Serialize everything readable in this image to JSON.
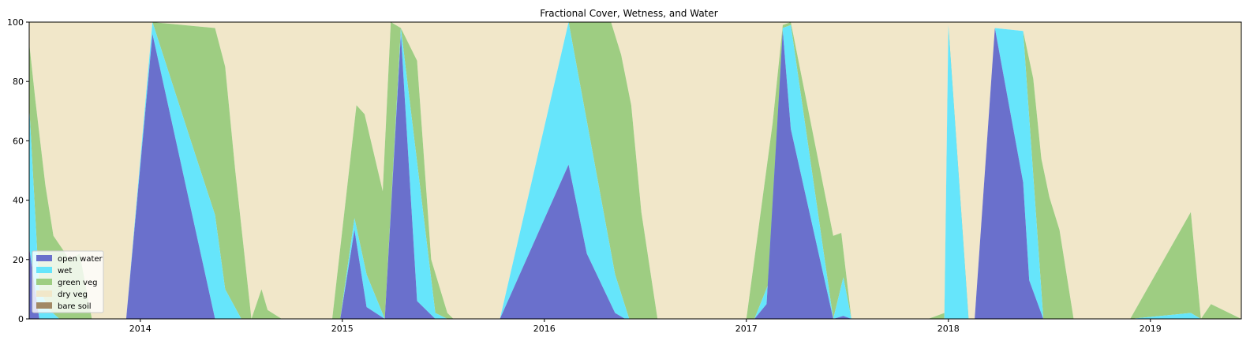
{
  "chart_data": {
    "type": "area",
    "stacked": true,
    "title": "Fractional Cover, Wetness, and Water",
    "xlabel": "",
    "ylabel": "",
    "xlim": [
      2013.45,
      2019.45
    ],
    "ylim": [
      0,
      100
    ],
    "x_ticks": [
      2014,
      2015,
      2016,
      2017,
      2018,
      2019
    ],
    "x_tick_labels": [
      "2014",
      "2015",
      "2016",
      "2017",
      "2018",
      "2019"
    ],
    "y_ticks": [
      0,
      20,
      40,
      60,
      80,
      100
    ],
    "y_tick_labels": [
      "0",
      "20",
      "40",
      "60",
      "80",
      "100"
    ],
    "legend_position": "lower-left",
    "grid": false,
    "series": [
      {
        "name": "open water",
        "color": "#6a70cc",
        "points": [
          [
            2013.45,
            24
          ],
          [
            2013.5,
            0
          ],
          [
            2013.93,
            0
          ],
          [
            2014.06,
            96
          ],
          [
            2014.37,
            0
          ],
          [
            2014.99,
            0
          ],
          [
            2015.06,
            30
          ],
          [
            2015.12,
            4
          ],
          [
            2015.21,
            0
          ],
          [
            2015.29,
            96
          ],
          [
            2015.37,
            6
          ],
          [
            2015.46,
            0
          ],
          [
            2015.78,
            0
          ],
          [
            2016.12,
            52
          ],
          [
            2016.21,
            22
          ],
          [
            2016.35,
            2
          ],
          [
            2016.4,
            0
          ],
          [
            2017.04,
            0
          ],
          [
            2017.1,
            5
          ],
          [
            2017.18,
            97
          ],
          [
            2017.22,
            64
          ],
          [
            2017.43,
            0
          ],
          [
            2017.48,
            1
          ],
          [
            2017.52,
            0
          ],
          [
            2018.13,
            0
          ],
          [
            2018.23,
            98
          ],
          [
            2018.37,
            46
          ],
          [
            2018.4,
            13
          ],
          [
            2018.47,
            0
          ],
          [
            2019.45,
            0
          ]
        ]
      },
      {
        "name": "wet",
        "color": "#66e5fb",
        "points": [
          [
            2013.45,
            72
          ],
          [
            2013.5,
            10
          ],
          [
            2013.55,
            3
          ],
          [
            2013.6,
            0
          ],
          [
            2013.93,
            0
          ],
          [
            2014.06,
            100
          ],
          [
            2014.25,
            60
          ],
          [
            2014.37,
            35
          ],
          [
            2014.42,
            10
          ],
          [
            2014.5,
            0
          ],
          [
            2014.99,
            0
          ],
          [
            2015.06,
            34
          ],
          [
            2015.12,
            15
          ],
          [
            2015.21,
            0
          ],
          [
            2015.29,
            98
          ],
          [
            2015.46,
            2
          ],
          [
            2015.52,
            0
          ],
          [
            2015.78,
            0
          ],
          [
            2016.12,
            100
          ],
          [
            2016.35,
            15
          ],
          [
            2016.42,
            0
          ],
          [
            2017.04,
            0
          ],
          [
            2017.14,
            17
          ],
          [
            2017.18,
            98
          ],
          [
            2017.22,
            99
          ],
          [
            2017.43,
            0
          ],
          [
            2017.48,
            14
          ],
          [
            2017.52,
            0
          ],
          [
            2017.98,
            0
          ],
          [
            2018.0,
            99
          ],
          [
            2018.1,
            0
          ],
          [
            2018.13,
            0
          ],
          [
            2018.23,
            98
          ],
          [
            2018.37,
            97
          ],
          [
            2018.47,
            0
          ],
          [
            2018.9,
            0
          ],
          [
            2019.2,
            2
          ],
          [
            2019.25,
            0
          ],
          [
            2019.45,
            0
          ]
        ]
      },
      {
        "name": "green veg",
        "color": "#9ecd82",
        "points": [
          [
            2013.45,
            93
          ],
          [
            2013.48,
            74
          ],
          [
            2013.53,
            45
          ],
          [
            2013.57,
            28
          ],
          [
            2013.65,
            20
          ],
          [
            2013.7,
            22
          ],
          [
            2013.76,
            0
          ],
          [
            2013.93,
            0
          ],
          [
            2014.06,
            100
          ],
          [
            2014.37,
            98
          ],
          [
            2014.42,
            85
          ],
          [
            2014.47,
            50
          ],
          [
            2014.55,
            0
          ],
          [
            2014.6,
            10
          ],
          [
            2014.63,
            3
          ],
          [
            2014.7,
            0
          ],
          [
            2014.95,
            0
          ],
          [
            2015.07,
            72
          ],
          [
            2015.11,
            69
          ],
          [
            2015.2,
            43
          ],
          [
            2015.24,
            100
          ],
          [
            2015.29,
            98
          ],
          [
            2015.37,
            87
          ],
          [
            2015.44,
            20
          ],
          [
            2015.52,
            2
          ],
          [
            2015.55,
            0
          ],
          [
            2015.78,
            0
          ],
          [
            2016.12,
            100
          ],
          [
            2016.33,
            100
          ],
          [
            2016.38,
            89
          ],
          [
            2016.43,
            72
          ],
          [
            2016.48,
            36
          ],
          [
            2016.56,
            0
          ],
          [
            2016.6,
            0
          ],
          [
            2017.0,
            0
          ],
          [
            2017.13,
            66
          ],
          [
            2017.18,
            99
          ],
          [
            2017.22,
            100
          ],
          [
            2017.43,
            28
          ],
          [
            2017.47,
            29
          ],
          [
            2017.52,
            0
          ],
          [
            2017.9,
            0
          ],
          [
            2017.98,
            2
          ],
          [
            2018.0,
            99
          ],
          [
            2018.06,
            15
          ],
          [
            2018.1,
            0
          ],
          [
            2018.13,
            0
          ],
          [
            2018.23,
            98
          ],
          [
            2018.37,
            97
          ],
          [
            2018.42,
            81
          ],
          [
            2018.46,
            54
          ],
          [
            2018.5,
            41
          ],
          [
            2018.55,
            30
          ],
          [
            2018.62,
            0
          ],
          [
            2018.9,
            0
          ],
          [
            2019.2,
            36
          ],
          [
            2019.25,
            0
          ],
          [
            2019.3,
            5
          ],
          [
            2019.45,
            0
          ]
        ]
      },
      {
        "name": "dry veg",
        "color": "#f1e7c9",
        "points": [
          [
            2013.45,
            100
          ],
          [
            2019.45,
            100
          ]
        ]
      },
      {
        "name": "bare soil",
        "color": "#a28865",
        "points": [
          [
            2013.45,
            100
          ],
          [
            2013.48,
            99.5
          ],
          [
            2013.53,
            98.5
          ],
          [
            2013.61,
            100
          ],
          [
            2014.89,
            100
          ],
          [
            2015.07,
            98
          ],
          [
            2015.17,
            100
          ],
          [
            2015.41,
            99
          ],
          [
            2015.5,
            100
          ],
          [
            2016.83,
            100
          ],
          [
            2016.91,
            94
          ],
          [
            2017.04,
            100
          ],
          [
            2019.45,
            100
          ]
        ]
      }
    ]
  }
}
